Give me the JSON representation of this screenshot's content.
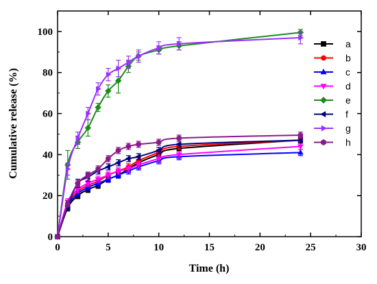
{
  "chart_data": {
    "type": "line",
    "title": "",
    "xlabel": "Time (h)",
    "ylabel": "Cumulative release (%)",
    "xlim": [
      0,
      30
    ],
    "ylim": [
      0,
      110
    ],
    "xticks": [
      0,
      5,
      10,
      15,
      20,
      25,
      30
    ],
    "yticks": [
      0,
      20,
      40,
      60,
      80,
      100
    ],
    "grid": false,
    "legend_position": "right",
    "x": [
      0,
      1,
      2,
      3,
      4,
      5,
      6,
      7,
      8,
      10,
      12,
      24
    ],
    "series": [
      {
        "name": "a",
        "color": "#000000",
        "marker": "square",
        "values": [
          0,
          14,
          20,
          23,
          25,
          28,
          30,
          33,
          36,
          40,
          43,
          47
        ],
        "errors": [
          0,
          1.5,
          1.5,
          1.5,
          1.5,
          1.5,
          1.5,
          1.5,
          1.5,
          1.5,
          1.5,
          1.5
        ]
      },
      {
        "name": "b",
        "color": "#ff0000",
        "marker": "circle",
        "values": [
          0,
          16,
          22,
          25,
          27,
          30,
          32,
          34,
          37,
          41,
          44,
          47
        ],
        "errors": [
          0,
          1.5,
          1.5,
          1.5,
          1.5,
          1.5,
          1.5,
          1.5,
          1.5,
          1.5,
          1.5,
          1.5
        ]
      },
      {
        "name": "c",
        "color": "#0000ff",
        "marker": "triangle-up",
        "values": [
          0,
          15,
          21,
          24,
          26,
          28,
          30,
          32,
          34,
          37,
          39,
          41
        ],
        "errors": [
          0,
          1.5,
          1.5,
          1.5,
          1.5,
          1.5,
          1.5,
          1.5,
          1.5,
          1.5,
          1.5,
          1.5
        ]
      },
      {
        "name": "d",
        "color": "#ff00ff",
        "marker": "triangle-down",
        "values": [
          0,
          17,
          23,
          26,
          28,
          30,
          32,
          33,
          35,
          38,
          40,
          44
        ],
        "errors": [
          0,
          1.5,
          1.5,
          1.5,
          1.5,
          1.5,
          1.5,
          1.5,
          1.5,
          1.5,
          1.5,
          1.5
        ]
      },
      {
        "name": "e",
        "color": "#1a8a1a",
        "marker": "diamond",
        "values": [
          0,
          35,
          46,
          53,
          63,
          71,
          76,
          83,
          88,
          91,
          93,
          99.5
        ],
        "errors": [
          0,
          7,
          3,
          4,
          2,
          3,
          6,
          3,
          2,
          2,
          2,
          1.5
        ]
      },
      {
        "name": "f",
        "color": "#000080",
        "marker": "triangle-left",
        "values": [
          0,
          15,
          26,
          29,
          32,
          34,
          36,
          38,
          39,
          42,
          45,
          47
        ],
        "errors": [
          0,
          1.5,
          2,
          2,
          1.5,
          1.5,
          1.5,
          1.5,
          1.5,
          1.5,
          1.5,
          1.5
        ]
      },
      {
        "name": "g",
        "color": "#9b30ff",
        "marker": "triangle-right",
        "values": [
          0,
          33,
          48,
          60,
          72,
          79,
          82,
          85,
          88,
          92,
          94,
          97
        ],
        "errors": [
          0,
          3,
          3,
          3,
          3,
          3,
          4,
          3,
          3,
          3,
          3,
          3
        ]
      },
      {
        "name": "h",
        "color": "#8b1a89",
        "marker": "hexagon",
        "values": [
          0,
          16,
          26,
          30,
          33,
          38,
          42,
          44,
          45,
          46,
          48,
          49.5
        ],
        "errors": [
          0,
          1.5,
          1.5,
          1.5,
          1.5,
          1.5,
          1.5,
          1.5,
          1.5,
          1.5,
          1.5,
          1.5
        ]
      }
    ]
  }
}
